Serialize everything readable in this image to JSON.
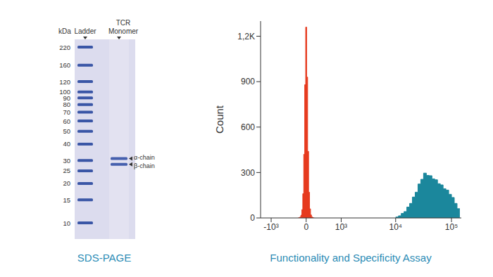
{
  "chart_data": [
    {
      "type": "gel",
      "title": "SDS-PAGE",
      "y_label": "kDa",
      "lanes": [
        "Ladder",
        "TCR Monomer"
      ],
      "ladder": [
        220,
        160,
        120,
        100,
        90,
        80,
        70,
        60,
        50,
        40,
        30,
        25,
        20,
        15,
        10
      ],
      "bands": [
        {
          "lane": "TCR Monomer",
          "label": "α-chain",
          "value": 31
        },
        {
          "lane": "TCR Monomer",
          "label": "β-chain",
          "value": 28
        }
      ]
    },
    {
      "type": "histogram",
      "title": "Functionality and Specificity Assay",
      "y_label": "Count",
      "log": "x",
      "xlim": [
        -1600,
        150000
      ],
      "xticks": [
        {
          "value": -1000,
          "label": "-10³"
        },
        0,
        {
          "value": 1000,
          "label": "10³"
        },
        {
          "value": 10000,
          "label": "10⁴"
        },
        {
          "value": 100000,
          "label": "10⁵"
        }
      ],
      "ylim": [
        0,
        1300
      ],
      "yticks": [
        0,
        300,
        600,
        900,
        {
          "value": 1200,
          "label": "1,2K"
        }
      ],
      "series": [
        {
          "color": "#e63a1e",
          "bins": [
            -170,
            -150,
            -130,
            -110,
            -90,
            -70,
            -50,
            -30,
            -10,
            10,
            30,
            50,
            70,
            90,
            110,
            130,
            150,
            170
          ],
          "counts": [
            0,
            2,
            6,
            18,
            55,
            160,
            420,
            880,
            1260,
            930,
            440,
            170,
            60,
            20,
            7,
            2,
            0
          ]
        },
        {
          "color": "#1b879c",
          "bins": [
            10000,
            11220,
            12589,
            14125,
            15849,
            17783,
            19953,
            22387,
            25119,
            28184,
            31623,
            35481,
            39811,
            44668,
            50119,
            56234,
            63096,
            70795,
            79433,
            89125,
            100000,
            112202,
            125893,
            141254
          ],
          "counts": [
            6,
            14,
            30,
            42,
            72,
            96,
            138,
            170,
            224,
            255,
            296,
            281,
            279,
            258,
            252,
            226,
            218,
            193,
            184,
            156,
            135,
            96,
            61
          ]
        }
      ]
    }
  ]
}
